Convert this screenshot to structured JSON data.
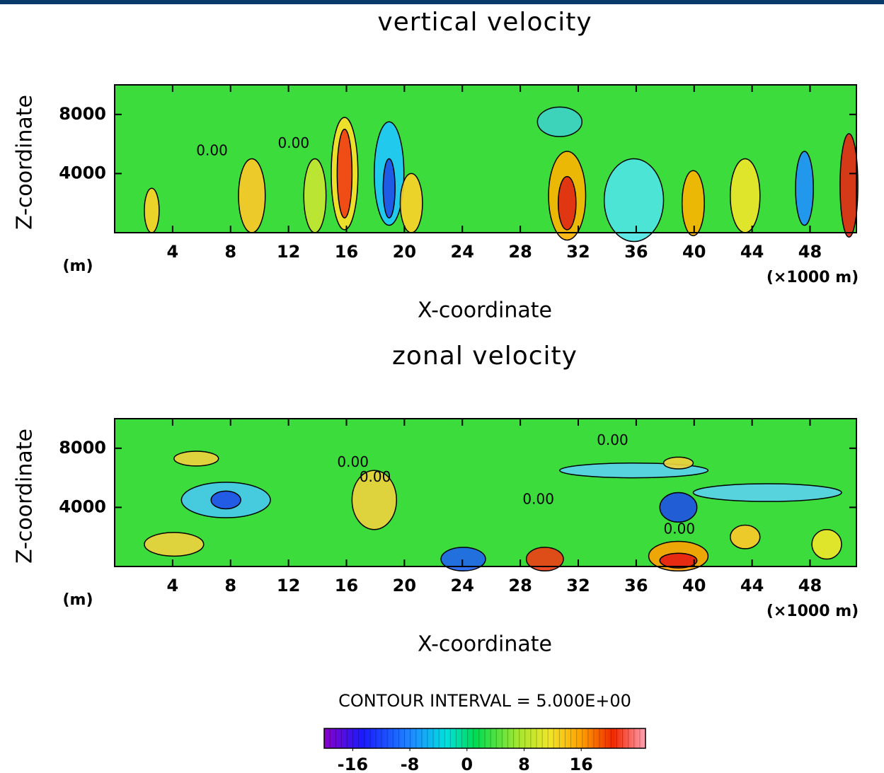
{
  "chart_data": [
    {
      "type": "contour",
      "title": "vertical velocity",
      "xlabel": "X-coordinate",
      "ylabel": "Z-coordinate",
      "y_unit": "(m)",
      "x_unit": "(×1000 m)",
      "xlim": [
        0,
        51.2
      ],
      "xticks": [
        4,
        8,
        12,
        16,
        20,
        24,
        28,
        32,
        36,
        40,
        44,
        48
      ],
      "ylim": [
        0,
        10000
      ],
      "yticks": [
        4000,
        8000
      ],
      "contour_labels": [
        "0.00",
        "0.00"
      ]
    },
    {
      "type": "contour",
      "title": "zonal velocity",
      "xlabel": "X-coordinate",
      "ylabel": "Z-coordinate",
      "y_unit": "(m)",
      "x_unit": "(×1000 m)",
      "xlim": [
        0,
        51.2
      ],
      "xticks": [
        4,
        8,
        12,
        16,
        20,
        24,
        28,
        32,
        36,
        40,
        44,
        48
      ],
      "ylim": [
        0,
        10000
      ],
      "yticks": [
        4000,
        8000
      ],
      "contour_labels": [
        "0.00",
        "0.00",
        "0.00",
        "0.00",
        "0.00"
      ]
    }
  ],
  "colorbar": {
    "title": "CONTOUR INTERVAL = 5.000E+00",
    "lim": [
      -20,
      25
    ],
    "ticks": [
      -16,
      -8,
      0,
      8,
      16
    ]
  }
}
